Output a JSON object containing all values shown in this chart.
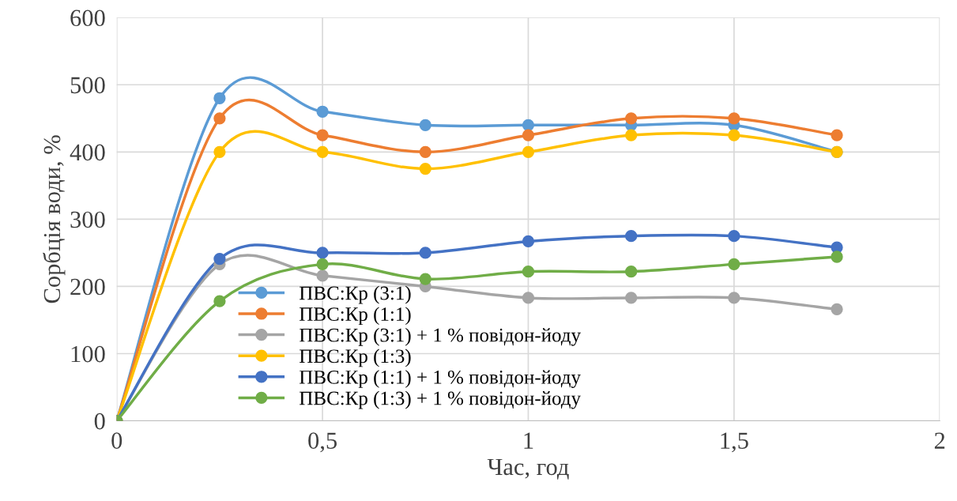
{
  "chart_data": {
    "type": "line",
    "xlabel": "Час, год",
    "ylabel": "Сорбція води, %",
    "x": [
      0,
      0.25,
      0.5,
      0.75,
      1,
      1.25,
      1.5,
      1.75
    ],
    "xlim": [
      0,
      2
    ],
    "xticks": [
      0,
      {
        "value": 0.5,
        "label": "0,5"
      },
      1,
      {
        "value": 1.5,
        "label": "1,5"
      },
      2
    ],
    "ylim": [
      0,
      600
    ],
    "yticks": [
      0,
      100,
      200,
      300,
      400,
      500,
      600
    ],
    "grid": true,
    "legend": "bottom left",
    "marker": "circle",
    "line_style": "solid",
    "series": [
      {
        "name": "ПВС:Кр (3:1)",
        "color": "#5b9bd5",
        "values": [
          0,
          480,
          460,
          440,
          440,
          440,
          440,
          400
        ]
      },
      {
        "name": "ПВС:Кр (1:1)",
        "color": "#ed7d31",
        "values": [
          0,
          450,
          425,
          400,
          425,
          450,
          450,
          425
        ]
      },
      {
        "name": "ПВС:Кр (3:1) + 1 % повідон-йоду",
        "color": "#a5a5a5",
        "values": [
          0,
          233,
          216,
          200,
          183,
          183,
          183,
          166
        ]
      },
      {
        "name": "ПВС:Кр (1:3)",
        "color": "#ffc000",
        "values": [
          0,
          400,
          400,
          375,
          400,
          425,
          425,
          400
        ]
      },
      {
        "name": "ПВС:Кр (1:1) + 1 % повідон-йоду",
        "color": "#4472c4",
        "values": [
          0,
          241,
          250,
          250,
          267,
          275,
          275,
          258
        ]
      },
      {
        "name": "ПВС:Кр (1:3) + 1 % повідон-йоду",
        "color": "#70ad47",
        "values": [
          0,
          178,
          233,
          211,
          222,
          222,
          233,
          244
        ]
      }
    ]
  }
}
